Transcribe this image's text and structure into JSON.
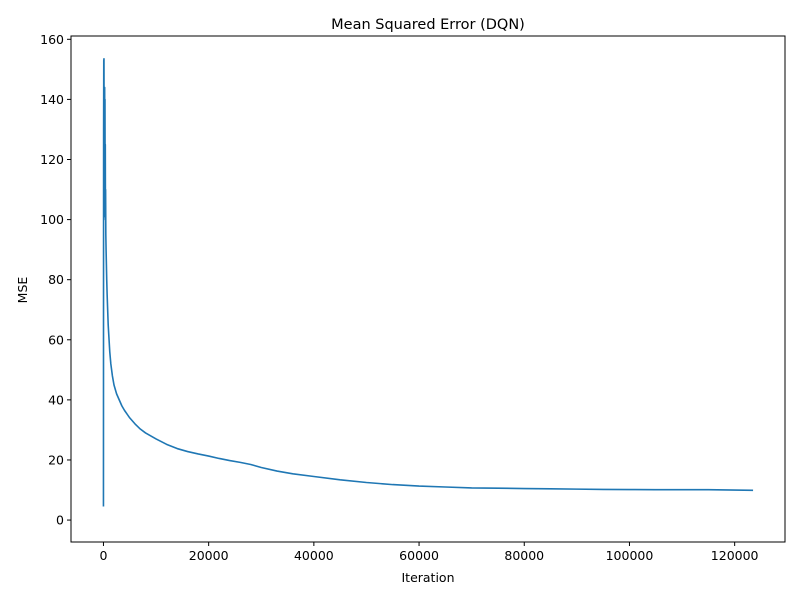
{
  "chart_data": {
    "type": "line",
    "title": "Mean Squared Error (DQN)",
    "xlabel": "Iteration",
    "ylabel": "MSE",
    "xlim": [
      -6170,
      129570
    ],
    "ylim": [
      -7.3,
      161.1
    ],
    "xticks": [
      0,
      20000,
      40000,
      60000,
      80000,
      100000,
      120000
    ],
    "yticks": [
      0,
      20,
      40,
      60,
      80,
      100,
      120,
      140,
      160
    ],
    "xtick_labels": [
      "0",
      "20000",
      "40000",
      "60000",
      "80000",
      "100000",
      "120000"
    ],
    "ytick_labels": [
      "0",
      "20",
      "40",
      "60",
      "80",
      "100",
      "120",
      "140",
      "160"
    ],
    "grid": false,
    "legend": false,
    "series": [
      {
        "color": "#1f77b4",
        "x": [
          0,
          10,
          30,
          60,
          100,
          140,
          170,
          200,
          230,
          260,
          290,
          320,
          350,
          380,
          410,
          450,
          500,
          560,
          620,
          700,
          800,
          900,
          1000,
          1200,
          1400,
          1700,
          2000,
          2500,
          3000,
          3500,
          4000,
          5000,
          6000,
          7000,
          8000,
          9000,
          10000,
          12000,
          14000,
          16000,
          18000,
          20000,
          22000,
          24000,
          26000,
          28000,
          30000,
          33000,
          36000,
          40000,
          45000,
          50000,
          55000,
          60000,
          65000,
          70000,
          75000,
          80000,
          85000,
          90000,
          95000,
          100000,
          105000,
          110000,
          115000,
          120000,
          123500
        ],
        "values": [
          4.5,
          60,
          130,
          153,
          153.5,
          110,
          101,
          135,
          144,
          120,
          140,
          105,
          125,
          100,
          110,
          95,
          90,
          85,
          80,
          75,
          70,
          65,
          62,
          56,
          52,
          48,
          45,
          42,
          40,
          38,
          36.5,
          34,
          32,
          30.3,
          29,
          28,
          27,
          25.2,
          23.8,
          22.8,
          22,
          21.3,
          20.5,
          19.8,
          19.2,
          18.5,
          17.5,
          16.3,
          15.4,
          14.5,
          13.4,
          12.5,
          11.8,
          11.3,
          11.0,
          10.7,
          10.6,
          10.5,
          10.4,
          10.3,
          10.2,
          10.15,
          10.1,
          10.1,
          10.1,
          10.0,
          9.9
        ]
      }
    ]
  }
}
